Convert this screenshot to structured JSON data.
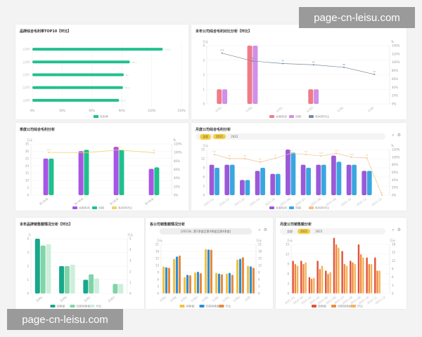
{
  "watermarks": [
    "page-cn-leisu.com",
    "page-cn-leisu.com"
  ],
  "panels": [
    {},
    {},
    {},
    {
      "tabs": [
        "全部",
        "2021",
        "2022"
      ],
      "active_tabs": [
        0,
        1
      ]
    },
    {},
    {
      "subtitle": "(2021年, 第1季度至第4季度至第4季度)"
    },
    {
      "tabs": [
        "全部",
        "2021",
        "2022"
      ],
      "active_tabs": [
        1
      ]
    }
  ],
  "chart_data": [
    {
      "type": "hbar",
      "title": "品牌综合毛利率TOP10【环比】",
      "categories": [
        "品牌A",
        "品牌B",
        "品牌C",
        "品牌D",
        "品牌E"
      ],
      "series": [
        {
          "name": "毛利率",
          "color": "#22c08e",
          "values": [
            131.2,
            98.1,
            92.0,
            91.2,
            87.3
          ]
        }
      ],
      "xlim": [
        0,
        150
      ],
      "xticks": [
        "0%",
        "30%",
        "60%",
        "90%",
        "120%",
        "150%"
      ]
    },
    {
      "type": "combo",
      "title": "本年公司综合毛利对比分析【环比】",
      "categories": [
        "公司A",
        "公司B",
        "公司C",
        "公司D",
        "公司E",
        "公司F"
      ],
      "ylim": [
        0,
        4
      ],
      "yticks": [
        "0",
        "1",
        "2",
        "3",
        "4"
      ],
      "y2lim": [
        0,
        140
      ],
      "y2ticks": [
        "0%",
        "20%",
        "40%",
        "60%",
        "80%",
        "100%",
        "120%",
        "140%"
      ],
      "yunit": "万元",
      "y2unit": "%",
      "series": [
        {
          "name": "本期毛利",
          "color": "#f07b88",
          "values": [
            1,
            4,
            0,
            1,
            0,
            0
          ]
        },
        {
          "name": "同期",
          "color": "#d08fe8",
          "values": [
            1,
            4,
            0,
            1,
            0,
            0
          ]
        }
      ],
      "line": {
        "name": "毛利率环比",
        "color": "#7a8a9a",
        "values": [
          122,
          103,
          97,
          94,
          88,
          71
        ]
      }
    },
    {
      "type": "combo",
      "title": "季度公司综合毛利分析",
      "categories": [
        "第1季度",
        "第2季度",
        "第3季度",
        "第4季度"
      ],
      "ylim": [
        0,
        35
      ],
      "yticks": [
        "0",
        "5",
        "10",
        "15",
        "20",
        "25",
        "30",
        "35"
      ],
      "y2lim": [
        0,
        120
      ],
      "y2ticks": [
        "0%",
        "20%",
        "40%",
        "60%",
        "80%",
        "100%",
        "120%"
      ],
      "yunit": "万元",
      "y2unit": "%",
      "series": [
        {
          "name": "本期毛利",
          "color": "#a855e6",
          "values": [
            25,
            30,
            33,
            18
          ]
        },
        {
          "name": "同期",
          "color": "#1fc08c",
          "values": [
            25,
            31,
            31,
            19
          ]
        }
      ],
      "line": {
        "name": "毛利率环比",
        "color": "#eed36a",
        "values": [
          100,
          99,
          106,
          99
        ]
      }
    },
    {
      "type": "combo",
      "title": "月度公司综合毛利分析",
      "categories": [
        "2021-01",
        "2021-02",
        "2021-03",
        "2021-04",
        "2021-05",
        "2021-06",
        "2021-07",
        "2021-08",
        "2021-09",
        "2021-10",
        "2021-11",
        "2021-12"
      ],
      "ylim": [
        0,
        15
      ],
      "yticks": [
        "0",
        "3",
        "6",
        "9",
        "12",
        "15"
      ],
      "y2lim": [
        0,
        120
      ],
      "y2ticks": [
        "0%",
        "20%",
        "40%",
        "60%",
        "80%",
        "100%",
        "120%"
      ],
      "yunit": "万元",
      "y2unit": "%",
      "series": [
        {
          "name": "本期毛利",
          "color": "#9b59d8",
          "values": [
            10,
            10,
            5,
            8,
            7,
            15,
            10,
            10,
            13,
            10,
            8,
            0
          ]
        },
        {
          "name": "同期",
          "color": "#3aa6e0",
          "values": [
            9,
            10,
            5,
            9,
            7,
            14,
            9,
            10,
            11,
            10,
            8,
            0
          ]
        }
      ],
      "line": {
        "name": "毛利率环比",
        "color": "#f0c08a",
        "values": [
          107,
          96,
          96,
          87,
          97,
          110,
          107,
          103,
          110,
          100,
          98,
          0
        ]
      }
    },
    {
      "type": "combo",
      "title": "本年品牌销售额情况分析【环比】",
      "categories": [
        "品牌A",
        "品牌B",
        "品牌C",
        "品牌D"
      ],
      "ylim": [
        0,
        4
      ],
      "yticks": [
        "0",
        "1",
        "2",
        "3",
        "4"
      ],
      "y2lim": [
        0,
        5
      ],
      "y2ticks": [
        "0",
        "1",
        "2",
        "3",
        "4",
        "5"
      ],
      "yunit": "万",
      "y2unit": "万元",
      "series": [
        {
          "name": "销售额",
          "color": "#17a88a",
          "values": [
            4,
            2,
            1,
            0
          ]
        },
        {
          "name": "同期销售额",
          "color": "#7fd4a8",
          "values": [
            3.5,
            2,
            1.4,
            0.7
          ]
        },
        {
          "name": "环比",
          "color": "#cdeedc",
          "values": [
            3.6,
            2.1,
            1.1,
            0.7
          ]
        }
      ]
    },
    {
      "type": "combo",
      "title": "各公司销售额情况分析",
      "categories": [
        "公司A",
        "公司B",
        "公司C",
        "公司D",
        "公司E",
        "公司F",
        "公司G",
        "公司H",
        "公司I"
      ],
      "ylim": [
        0,
        21
      ],
      "yticks": [
        "0",
        "3",
        "6",
        "9",
        "12",
        "15",
        "18",
        "21"
      ],
      "y2lim": [
        0,
        21
      ],
      "y2ticks": [
        "0",
        "3",
        "6",
        "9",
        "12",
        "15",
        "18",
        "21"
      ],
      "yunit": "万元",
      "y2unit": "万元",
      "series": [
        {
          "name": "销售额",
          "color": "#f4c040",
          "values": [
            11.5,
            14.8,
            7,
            9,
            19,
            8.8,
            8.5,
            14.5,
            11.8
          ]
        },
        {
          "name": "同期销售额",
          "color": "#2b8fd6",
          "values": [
            11.2,
            15.8,
            8,
            9.3,
            18.8,
            8.5,
            8.8,
            14.8,
            11.6
          ]
        },
        {
          "name": "环比",
          "color": "#e8883a",
          "values": [
            11,
            16.2,
            7.8,
            8.7,
            18.7,
            8.2,
            8,
            15.5,
            11
          ]
        }
      ]
    },
    {
      "type": "combo",
      "title": "月度公司销售额分析",
      "categories": [
        "2021-01",
        "2021-02",
        "2021-03",
        "2021-04",
        "2021-05",
        "2021-06",
        "2021-07",
        "2021-08",
        "2021-09",
        "2021-10",
        "2021-11",
        "2021-12"
      ],
      "ylim": [
        0,
        15
      ],
      "yticks": [
        "0",
        "3",
        "6",
        "9",
        "12",
        "15"
      ],
      "y2lim": [
        0,
        18
      ],
      "y2ticks": [
        "0",
        "3",
        "6",
        "9",
        "12",
        "15",
        "18"
      ],
      "yunit": "万元",
      "y2unit": "万元",
      "series": [
        {
          "name": "销售额",
          "color": "#e0523a",
          "values": [
            10,
            10,
            5,
            10,
            7,
            17,
            13,
            10,
            15,
            11,
            11,
            0
          ]
        },
        {
          "name": "同期销售额",
          "color": "#f08a3c",
          "values": [
            9,
            9,
            4.5,
            7.5,
            6,
            15,
            9,
            9.5,
            12,
            9,
            7,
            0
          ]
        },
        {
          "name": "环比",
          "color": "#f6b25a",
          "values": [
            8.5,
            9.5,
            4.8,
            8.5,
            6.5,
            14,
            8.5,
            9,
            11,
            9,
            7,
            0
          ]
        }
      ]
    }
  ]
}
